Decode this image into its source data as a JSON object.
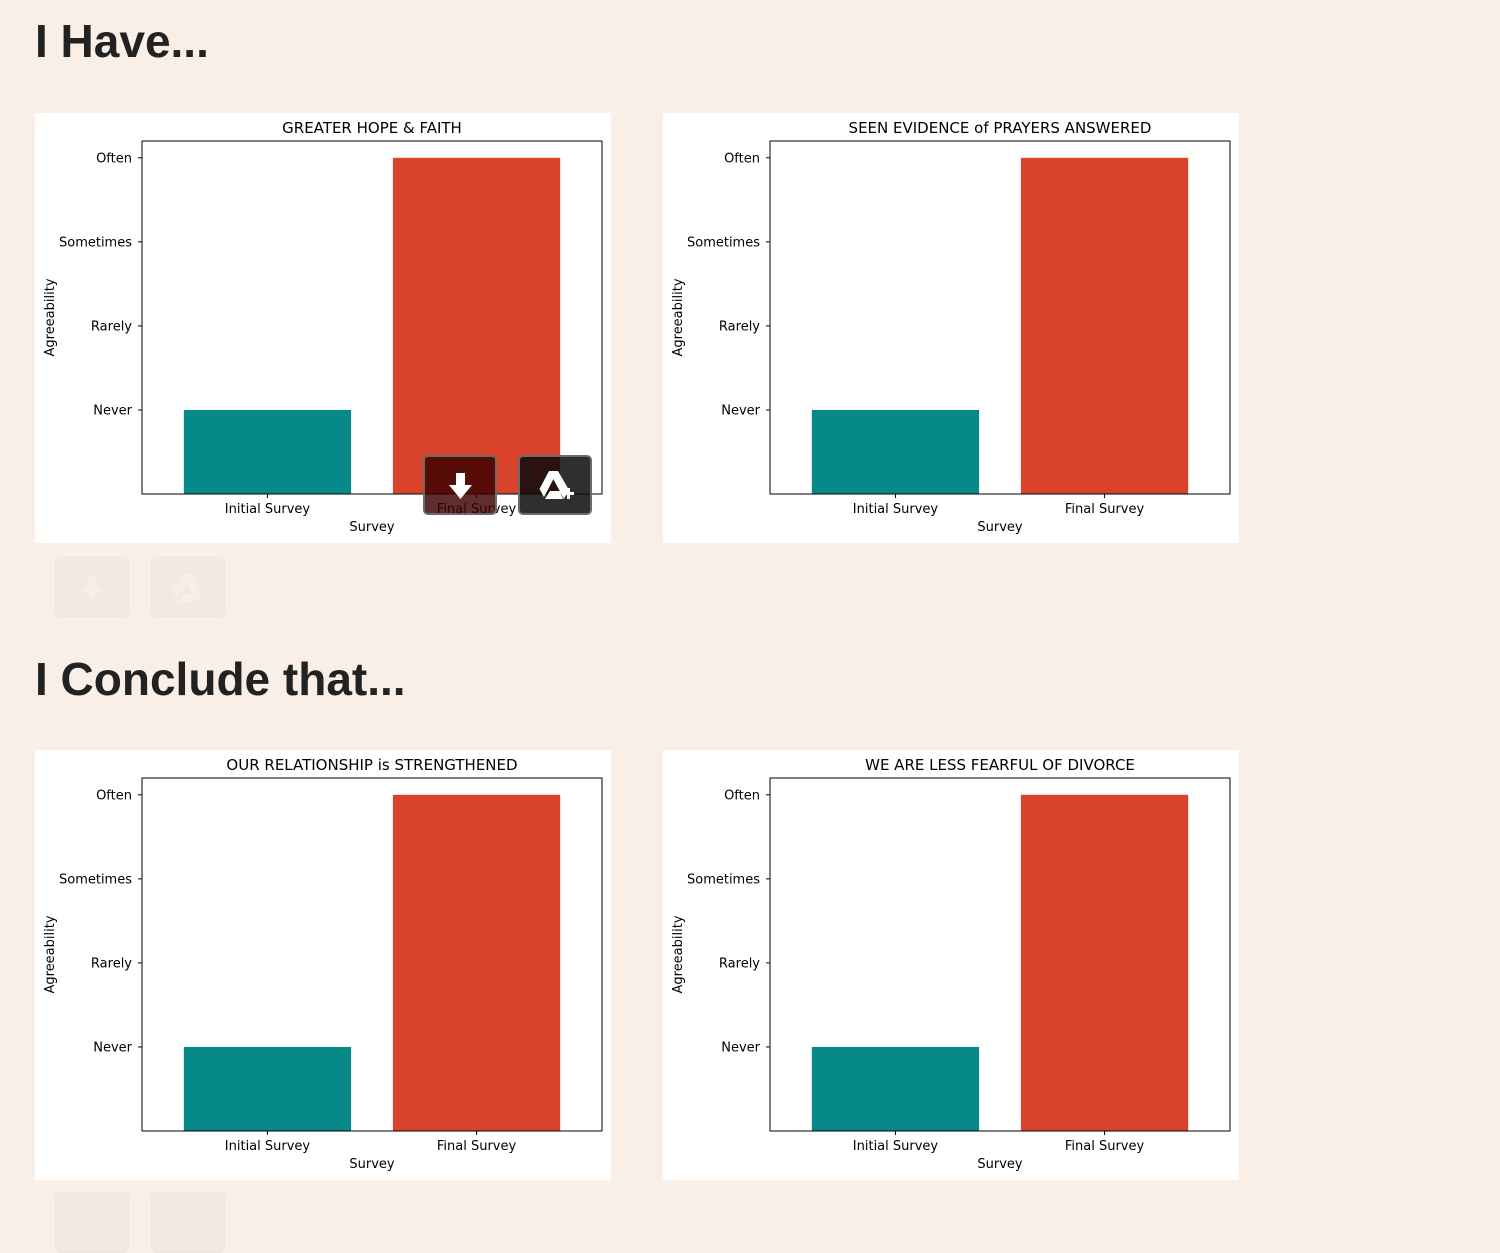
{
  "sections": [
    {
      "heading": "I Have...",
      "charts": [
        {
          "type": "bar",
          "title": "GREATER HOPE & FAITH",
          "xlabel": "Survey",
          "ylabel": "Agreeability",
          "categories": [
            "Initial Survey",
            "Final Survey"
          ],
          "values": [
            1,
            4
          ],
          "yticks": [
            "Never",
            "Rarely",
            "Sometimes",
            "Often"
          ],
          "ylim": [
            0,
            4.2
          ],
          "colors": [
            "#07898a",
            "#d9432c"
          ]
        },
        {
          "type": "bar",
          "title": "SEEN EVIDENCE of PRAYERS ANSWERED",
          "xlabel": "Survey",
          "ylabel": "Agreeability",
          "categories": [
            "Initial Survey",
            "Final Survey"
          ],
          "values": [
            1,
            4
          ],
          "yticks": [
            "Never",
            "Rarely",
            "Sometimes",
            "Often"
          ],
          "ylim": [
            0,
            4.2
          ],
          "colors": [
            "#07898a",
            "#d9432c"
          ]
        }
      ]
    },
    {
      "heading": "I Conclude that...",
      "charts": [
        {
          "type": "bar",
          "title": "OUR RELATIONSHIP is STRENGTHENED",
          "xlabel": "Survey",
          "ylabel": "Agreeability",
          "categories": [
            "Initial Survey",
            "Final Survey"
          ],
          "values": [
            1,
            4
          ],
          "yticks": [
            "Never",
            "Rarely",
            "Sometimes",
            "Often"
          ],
          "ylim": [
            0,
            4.2
          ],
          "colors": [
            "#07898a",
            "#d9432c"
          ]
        },
        {
          "type": "bar",
          "title": "WE ARE LESS FEARFUL OF DIVORCE",
          "xlabel": "Survey",
          "ylabel": "Agreeability",
          "categories": [
            "Initial Survey",
            "Final Survey"
          ],
          "values": [
            1,
            4
          ],
          "yticks": [
            "Never",
            "Rarely",
            "Sometimes",
            "Often"
          ],
          "ylim": [
            0,
            4.2
          ],
          "colors": [
            "#07898a",
            "#d9432c"
          ]
        }
      ]
    }
  ],
  "icons": {
    "download": "download-icon",
    "drive": "google-drive-add-icon"
  },
  "colors": {
    "page_background": "#f9efe6",
    "heading_text": "#222222",
    "initial_bar": "#07898a",
    "final_bar": "#d9432c"
  }
}
